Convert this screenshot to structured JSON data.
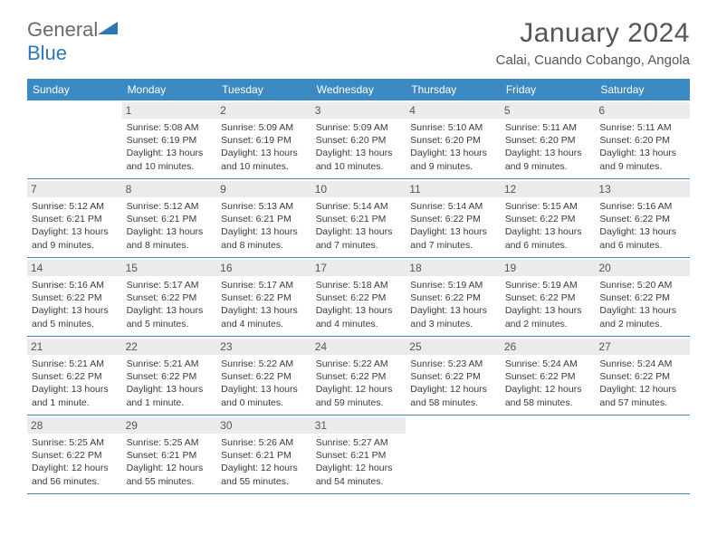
{
  "brand": {
    "general": "General",
    "blue": "Blue"
  },
  "title": "January 2024",
  "location": "Calai, Cuando Cobango, Angola",
  "colors": {
    "header_bg": "#3b8ac4",
    "header_text": "#ffffff",
    "daynum_bg": "#ebebeb",
    "border": "#3b8ac4",
    "text": "#333333",
    "title_text": "#555555"
  },
  "weekdays": [
    "Sunday",
    "Monday",
    "Tuesday",
    "Wednesday",
    "Thursday",
    "Friday",
    "Saturday"
  ],
  "weeks": [
    [
      {
        "n": "",
        "sr": "",
        "ss": "",
        "dl": ""
      },
      {
        "n": "1",
        "sr": "Sunrise: 5:08 AM",
        "ss": "Sunset: 6:19 PM",
        "dl": "Daylight: 13 hours and 10 minutes."
      },
      {
        "n": "2",
        "sr": "Sunrise: 5:09 AM",
        "ss": "Sunset: 6:19 PM",
        "dl": "Daylight: 13 hours and 10 minutes."
      },
      {
        "n": "3",
        "sr": "Sunrise: 5:09 AM",
        "ss": "Sunset: 6:20 PM",
        "dl": "Daylight: 13 hours and 10 minutes."
      },
      {
        "n": "4",
        "sr": "Sunrise: 5:10 AM",
        "ss": "Sunset: 6:20 PM",
        "dl": "Daylight: 13 hours and 9 minutes."
      },
      {
        "n": "5",
        "sr": "Sunrise: 5:11 AM",
        "ss": "Sunset: 6:20 PM",
        "dl": "Daylight: 13 hours and 9 minutes."
      },
      {
        "n": "6",
        "sr": "Sunrise: 5:11 AM",
        "ss": "Sunset: 6:20 PM",
        "dl": "Daylight: 13 hours and 9 minutes."
      }
    ],
    [
      {
        "n": "7",
        "sr": "Sunrise: 5:12 AM",
        "ss": "Sunset: 6:21 PM",
        "dl": "Daylight: 13 hours and 9 minutes."
      },
      {
        "n": "8",
        "sr": "Sunrise: 5:12 AM",
        "ss": "Sunset: 6:21 PM",
        "dl": "Daylight: 13 hours and 8 minutes."
      },
      {
        "n": "9",
        "sr": "Sunrise: 5:13 AM",
        "ss": "Sunset: 6:21 PM",
        "dl": "Daylight: 13 hours and 8 minutes."
      },
      {
        "n": "10",
        "sr": "Sunrise: 5:14 AM",
        "ss": "Sunset: 6:21 PM",
        "dl": "Daylight: 13 hours and 7 minutes."
      },
      {
        "n": "11",
        "sr": "Sunrise: 5:14 AM",
        "ss": "Sunset: 6:22 PM",
        "dl": "Daylight: 13 hours and 7 minutes."
      },
      {
        "n": "12",
        "sr": "Sunrise: 5:15 AM",
        "ss": "Sunset: 6:22 PM",
        "dl": "Daylight: 13 hours and 6 minutes."
      },
      {
        "n": "13",
        "sr": "Sunrise: 5:16 AM",
        "ss": "Sunset: 6:22 PM",
        "dl": "Daylight: 13 hours and 6 minutes."
      }
    ],
    [
      {
        "n": "14",
        "sr": "Sunrise: 5:16 AM",
        "ss": "Sunset: 6:22 PM",
        "dl": "Daylight: 13 hours and 5 minutes."
      },
      {
        "n": "15",
        "sr": "Sunrise: 5:17 AM",
        "ss": "Sunset: 6:22 PM",
        "dl": "Daylight: 13 hours and 5 minutes."
      },
      {
        "n": "16",
        "sr": "Sunrise: 5:17 AM",
        "ss": "Sunset: 6:22 PM",
        "dl": "Daylight: 13 hours and 4 minutes."
      },
      {
        "n": "17",
        "sr": "Sunrise: 5:18 AM",
        "ss": "Sunset: 6:22 PM",
        "dl": "Daylight: 13 hours and 4 minutes."
      },
      {
        "n": "18",
        "sr": "Sunrise: 5:19 AM",
        "ss": "Sunset: 6:22 PM",
        "dl": "Daylight: 13 hours and 3 minutes."
      },
      {
        "n": "19",
        "sr": "Sunrise: 5:19 AM",
        "ss": "Sunset: 6:22 PM",
        "dl": "Daylight: 13 hours and 2 minutes."
      },
      {
        "n": "20",
        "sr": "Sunrise: 5:20 AM",
        "ss": "Sunset: 6:22 PM",
        "dl": "Daylight: 13 hours and 2 minutes."
      }
    ],
    [
      {
        "n": "21",
        "sr": "Sunrise: 5:21 AM",
        "ss": "Sunset: 6:22 PM",
        "dl": "Daylight: 13 hours and 1 minute."
      },
      {
        "n": "22",
        "sr": "Sunrise: 5:21 AM",
        "ss": "Sunset: 6:22 PM",
        "dl": "Daylight: 13 hours and 1 minute."
      },
      {
        "n": "23",
        "sr": "Sunrise: 5:22 AM",
        "ss": "Sunset: 6:22 PM",
        "dl": "Daylight: 13 hours and 0 minutes."
      },
      {
        "n": "24",
        "sr": "Sunrise: 5:22 AM",
        "ss": "Sunset: 6:22 PM",
        "dl": "Daylight: 12 hours and 59 minutes."
      },
      {
        "n": "25",
        "sr": "Sunrise: 5:23 AM",
        "ss": "Sunset: 6:22 PM",
        "dl": "Daylight: 12 hours and 58 minutes."
      },
      {
        "n": "26",
        "sr": "Sunrise: 5:24 AM",
        "ss": "Sunset: 6:22 PM",
        "dl": "Daylight: 12 hours and 58 minutes."
      },
      {
        "n": "27",
        "sr": "Sunrise: 5:24 AM",
        "ss": "Sunset: 6:22 PM",
        "dl": "Daylight: 12 hours and 57 minutes."
      }
    ],
    [
      {
        "n": "28",
        "sr": "Sunrise: 5:25 AM",
        "ss": "Sunset: 6:22 PM",
        "dl": "Daylight: 12 hours and 56 minutes."
      },
      {
        "n": "29",
        "sr": "Sunrise: 5:25 AM",
        "ss": "Sunset: 6:21 PM",
        "dl": "Daylight: 12 hours and 55 minutes."
      },
      {
        "n": "30",
        "sr": "Sunrise: 5:26 AM",
        "ss": "Sunset: 6:21 PM",
        "dl": "Daylight: 12 hours and 55 minutes."
      },
      {
        "n": "31",
        "sr": "Sunrise: 5:27 AM",
        "ss": "Sunset: 6:21 PM",
        "dl": "Daylight: 12 hours and 54 minutes."
      },
      {
        "n": "",
        "sr": "",
        "ss": "",
        "dl": ""
      },
      {
        "n": "",
        "sr": "",
        "ss": "",
        "dl": ""
      },
      {
        "n": "",
        "sr": "",
        "ss": "",
        "dl": ""
      }
    ]
  ]
}
